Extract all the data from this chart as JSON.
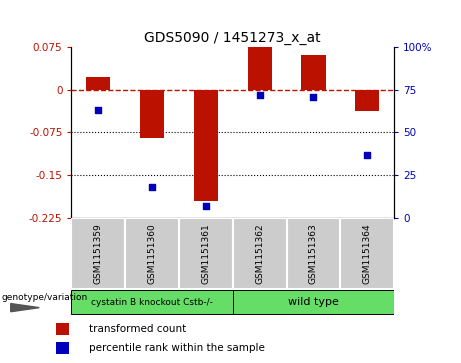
{
  "title": "GDS5090 / 1451273_x_at",
  "samples": [
    "GSM1151359",
    "GSM1151360",
    "GSM1151361",
    "GSM1151362",
    "GSM1151363",
    "GSM1151364"
  ],
  "bar_values": [
    0.022,
    -0.085,
    -0.195,
    0.075,
    0.062,
    -0.038
  ],
  "percentile_values": [
    63,
    18,
    7,
    72,
    71,
    37
  ],
  "ylim_left": [
    -0.225,
    0.075
  ],
  "ylim_right": [
    0,
    100
  ],
  "yticks_left": [
    0.075,
    0,
    -0.075,
    -0.15,
    -0.225
  ],
  "yticks_right": [
    100,
    75,
    50,
    25,
    0
  ],
  "bar_color": "#bb1100",
  "point_color": "#0000bb",
  "group1_label": "cystatin B knockout Cstb-/-",
  "group2_label": "wild type",
  "group_color": "#66dd66",
  "group1_indices": [
    0,
    1,
    2
  ],
  "group2_indices": [
    3,
    4,
    5
  ],
  "genotype_label": "genotype/variation",
  "legend_bar_label": "transformed count",
  "legend_point_label": "percentile rank within the sample",
  "bar_width": 0.45,
  "sample_box_color": "#cccccc",
  "title_fontsize": 10,
  "tick_fontsize": 7.5,
  "label_fontsize": 8
}
